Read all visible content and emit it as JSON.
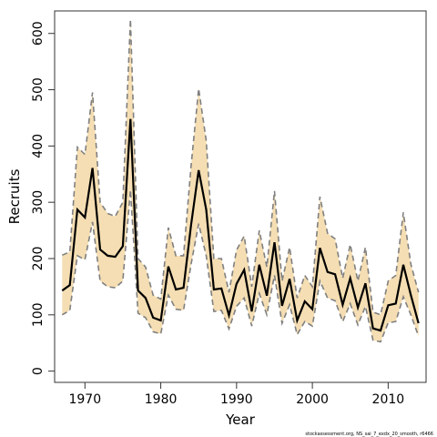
{
  "chart_data": {
    "type": "line",
    "xlabel": "Year",
    "ylabel": "Recruits",
    "xlim": [
      1966,
      2015
    ],
    "ylim": [
      -20,
      640
    ],
    "xticks": [
      1970,
      1980,
      1990,
      2000,
      2010
    ],
    "yticks": [
      0,
      100,
      200,
      300,
      400,
      500,
      600
    ],
    "grid": false,
    "legend": "none",
    "footnote": "stockassessment.org, NS_sai_7_exdx_20_smooth, r6466",
    "colors": {
      "band": "#f5deb3",
      "estimate": "#000000",
      "bounds": "#808080"
    },
    "x": [
      1967,
      1968,
      1969,
      1970,
      1971,
      1972,
      1973,
      1974,
      1975,
      1976,
      1977,
      1978,
      1979,
      1980,
      1981,
      1982,
      1983,
      1984,
      1985,
      1986,
      1987,
      1988,
      1989,
      1990,
      1991,
      1992,
      1993,
      1994,
      1995,
      1996,
      1997,
      1998,
      1999,
      2000,
      2001,
      2002,
      2003,
      2004,
      2005,
      2006,
      2007,
      2008,
      2009,
      2010,
      2011,
      2012,
      2013,
      2014
    ],
    "series": [
      {
        "role": "estimate",
        "values": [
          143,
          153,
          287,
          273,
          361,
          216,
          205,
          203,
          222,
          448,
          143,
          130,
          95,
          90,
          186,
          145,
          148,
          260,
          357,
          287,
          145,
          147,
          99,
          155,
          180,
          106,
          189,
          134,
          229,
          116,
          164,
          90,
          124,
          110,
          219,
          176,
          172,
          118,
          165,
          113,
          156,
          76,
          72,
          117,
          120,
          189,
          135,
          85
        ]
      },
      {
        "role": "upper",
        "values": [
          206,
          212,
          398,
          385,
          495,
          300,
          280,
          275,
          300,
          625,
          200,
          185,
          135,
          128,
          255,
          205,
          205,
          365,
          502,
          410,
          200,
          200,
          140,
          215,
          240,
          150,
          250,
          185,
          320,
          160,
          220,
          130,
          170,
          150,
          310,
          245,
          235,
          165,
          225,
          160,
          220,
          105,
          100,
          160,
          170,
          282,
          190,
          140
        ]
      },
      {
        "role": "lower",
        "values": [
          100,
          108,
          205,
          198,
          265,
          160,
          150,
          148,
          160,
          322,
          103,
          95,
          70,
          66,
          135,
          110,
          108,
          190,
          262,
          205,
          106,
          108,
          75,
          115,
          130,
          80,
          138,
          100,
          170,
          85,
          118,
          65,
          88,
          80,
          160,
          130,
          125,
          88,
          120,
          82,
          115,
          55,
          52,
          86,
          88,
          132,
          100,
          62
        ]
      }
    ]
  }
}
